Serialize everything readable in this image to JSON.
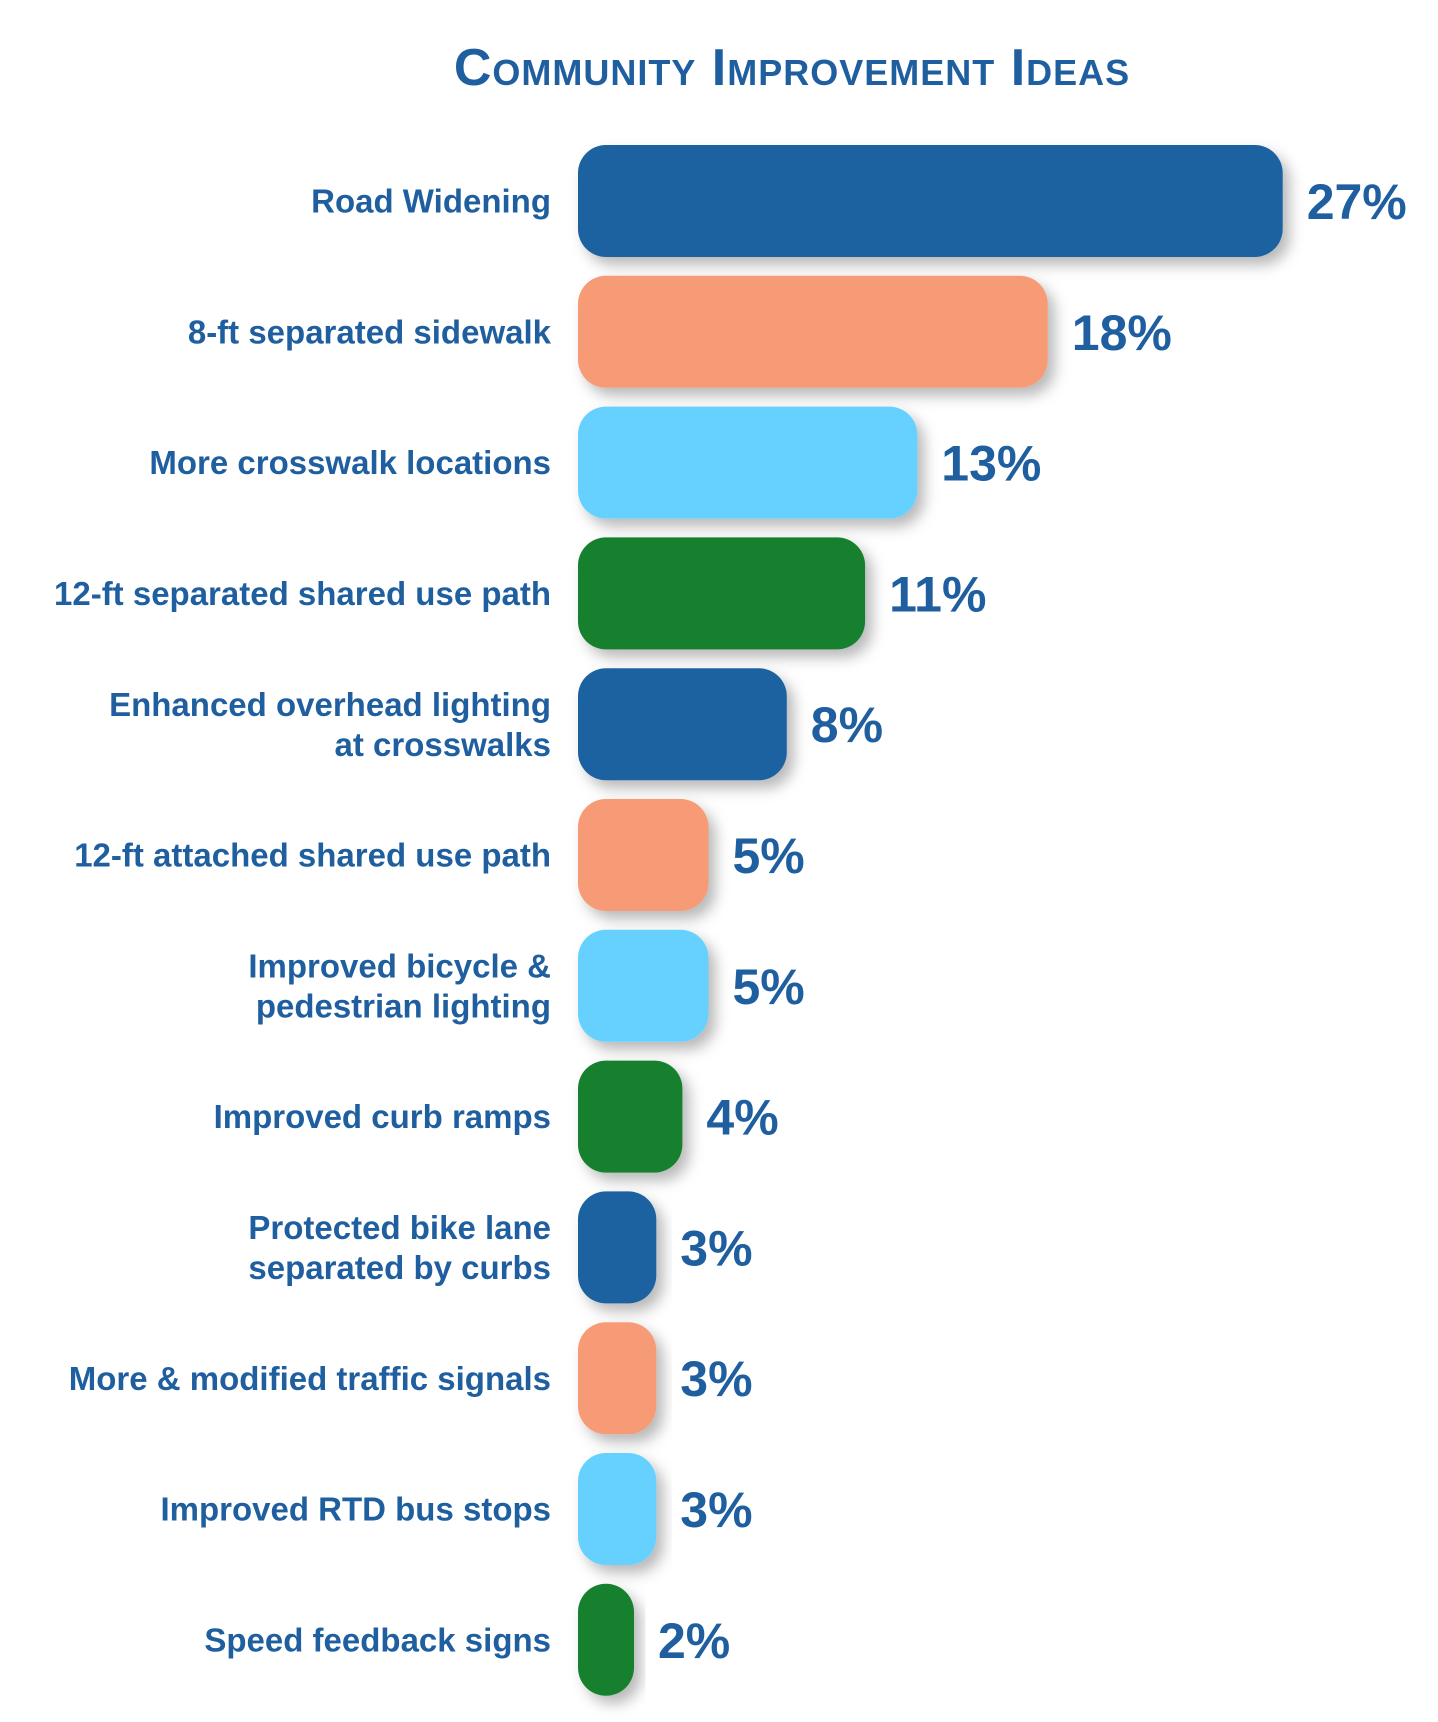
{
  "chart_data": {
    "type": "bar",
    "orientation": "horizontal",
    "title": "Community Improvement Ideas",
    "categories": [
      [
        "Road Widening"
      ],
      [
        "8-ft separated sidewalk"
      ],
      [
        "More crosswalk locations"
      ],
      [
        "12-ft separated shared use path"
      ],
      [
        "Enhanced overhead lighting",
        "at crosswalks"
      ],
      [
        "12-ft attached shared use path"
      ],
      [
        "Improved bicycle &",
        "pedestrian lighting"
      ],
      [
        "Improved curb ramps"
      ],
      [
        "Protected bike lane",
        "separated by curbs"
      ],
      [
        "More & modified traffic signals"
      ],
      [
        "Improved RTD bus stops"
      ],
      [
        "Speed feedback signs"
      ]
    ],
    "values": [
      27,
      18,
      13,
      11,
      8,
      5,
      5,
      4,
      3,
      3,
      3,
      2
    ],
    "value_labels": [
      "27%",
      "18%",
      "13%",
      "11%",
      "8%",
      "5%",
      "5%",
      "4%",
      "3%",
      "3%",
      "3%",
      "2%"
    ],
    "unit": "%",
    "bar_colors": [
      "#1f62a1",
      "#f69b74",
      "#66d1ff",
      "#18802f",
      "#1f62a1",
      "#f69b74",
      "#66d1ff",
      "#18802f",
      "#1f62a1",
      "#f69b74",
      "#66d1ff",
      "#18802f"
    ],
    "text_color": "#1f5f9f",
    "grid": false,
    "legend": "none"
  }
}
